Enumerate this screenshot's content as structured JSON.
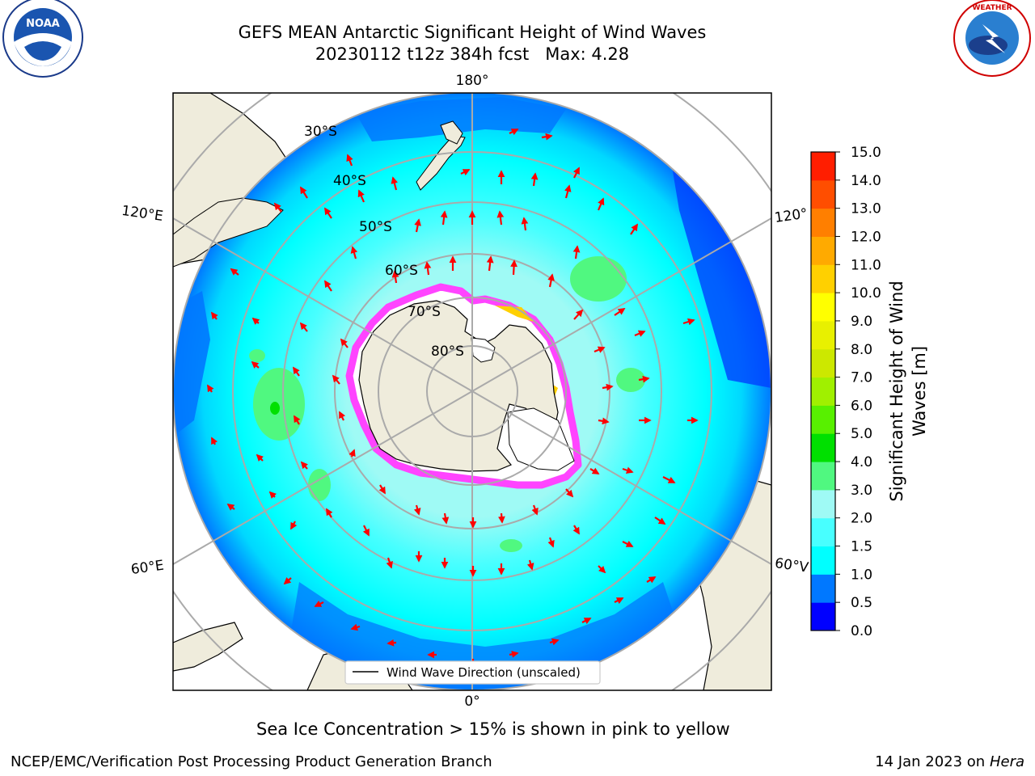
{
  "header": {
    "title_line1": "GEFS MEAN Antarctic Significant Height of Wind Waves",
    "title_line2": "20230112 t12z 384h fcst   Max: 4.28"
  },
  "logos": {
    "noaa": {
      "text": "NOAA",
      "ring_text": "NATIONAL OCEANIC AND ATMOSPHERIC ADMINISTRATION · U.S. DEPARTMENT OF COMMERCE"
    },
    "nws": {
      "ring_text": "NATIONAL WEATHER SERVICE"
    }
  },
  "map": {
    "lon_labels": {
      "top": "180°",
      "bottom": "0°",
      "upper_left": "120°E",
      "lower_left": "60°E",
      "upper_right": "120°",
      "lower_right": "60°V"
    },
    "lat_labels": [
      "30°S",
      "40°S",
      "50°S",
      "60°S",
      "70°S",
      "80°S"
    ],
    "legend_label": "Wind Wave Direction (unscaled)",
    "colors": {
      "land": "#efecdc",
      "ocean_low": "#0070ff",
      "ocean_mid": "#00ffff",
      "ocean_high": "#9ffaf5",
      "ice": "#ff44ff",
      "arrow": "#ff0000"
    }
  },
  "colorbar": {
    "label": "Significant Height of Wind Waves [m]",
    "label_line1": "Significant Height of Wind",
    "label_line2": "Waves [m]",
    "ticks": [
      "0.0",
      "0.5",
      "1.0",
      "1.5",
      "2.0",
      "3.0",
      "4.0",
      "5.0",
      "6.0",
      "7.0",
      "8.0",
      "9.0",
      "10.0",
      "11.0",
      "12.0",
      "13.0",
      "14.0",
      "15.0"
    ],
    "colors": [
      "#0000ff",
      "#0078ff",
      "#00ffff",
      "#48ffff",
      "#9ffaf5",
      "#50f880",
      "#00e000",
      "#58f000",
      "#a0f000",
      "#cce800",
      "#e8f000",
      "#ffff00",
      "#ffd000",
      "#ffaa00",
      "#ff7f00",
      "#ff4e00",
      "#ff1e00"
    ]
  },
  "notes": {
    "sea_ice": "Sea Ice Concentration > 15% is shown in pink to yellow"
  },
  "footer": {
    "left": "NCEP/EMC/Verification Post Processing Product Generation Branch",
    "right_date": "14 Jan 2023 on ",
    "right_machine": "Hera"
  }
}
